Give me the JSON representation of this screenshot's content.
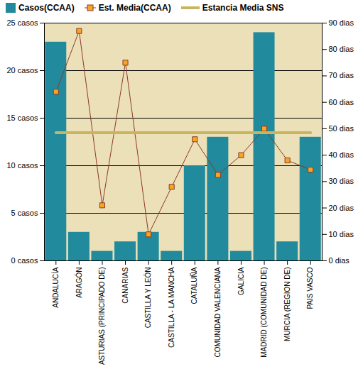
{
  "chart_data": {
    "type": "bar",
    "categories": [
      "ANDALUCÍA",
      "ARAGÓN",
      "ASTURIAS (PRINCIPADO DE)",
      "CANARIAS",
      "CASTILLA Y LEÓN",
      "CASTILLA - LA MANCHA",
      "CATALUÑA",
      "COMUNIDAD VALENCIANA",
      "GALICIA",
      "MADRID (COMUNIDAD DE)",
      "MURCIA (REGION DE)",
      "PAIS VASCO"
    ],
    "series": [
      {
        "name": "Casos(CCAA)",
        "type": "bar",
        "color": "#218a9c",
        "values": [
          23,
          3,
          1,
          2,
          3,
          1,
          10,
          13,
          1,
          24,
          2,
          13
        ]
      },
      {
        "name": "Est. Media(CCAA)",
        "type": "line",
        "axis": "y2",
        "color": "#8b3a2a",
        "marker": "square",
        "values": [
          64,
          87,
          21,
          75,
          10,
          28,
          46,
          32.5,
          40,
          50,
          38,
          34.5
        ]
      },
      {
        "name": "Estancia Media SNS",
        "type": "line",
        "axis": "y2",
        "color": "#c8b560",
        "values": [
          48.5,
          48.5,
          48.5,
          48.5,
          48.5,
          48.5,
          48.5,
          48.5,
          48.5,
          48.5,
          48.5,
          48.5
        ]
      }
    ],
    "ylim": [
      0,
      25
    ],
    "yticks": [
      {
        "value": 0,
        "label": "0 casos"
      },
      {
        "value": 5,
        "label": "5 casos"
      },
      {
        "value": 10,
        "label": "10 casos"
      },
      {
        "value": 15,
        "label": "15 casos"
      },
      {
        "value": 20,
        "label": "20 casos"
      },
      {
        "value": 25,
        "label": "25 casos"
      }
    ],
    "y2lim": [
      0,
      90
    ],
    "y2ticks": [
      {
        "value": 0,
        "label": "0 dias"
      },
      {
        "value": 10,
        "label": "10 dias"
      },
      {
        "value": 20,
        "label": "20 dias"
      },
      {
        "value": 30,
        "label": "30 dias"
      },
      {
        "value": 40,
        "label": "40 dias"
      },
      {
        "value": 50,
        "label": "50 dias"
      },
      {
        "value": 60,
        "label": "60 dias"
      },
      {
        "value": 70,
        "label": "70 dias"
      },
      {
        "value": 80,
        "label": "80 dias"
      },
      {
        "value": 90,
        "label": "90 dias"
      }
    ],
    "grid": true,
    "legend": "top"
  }
}
